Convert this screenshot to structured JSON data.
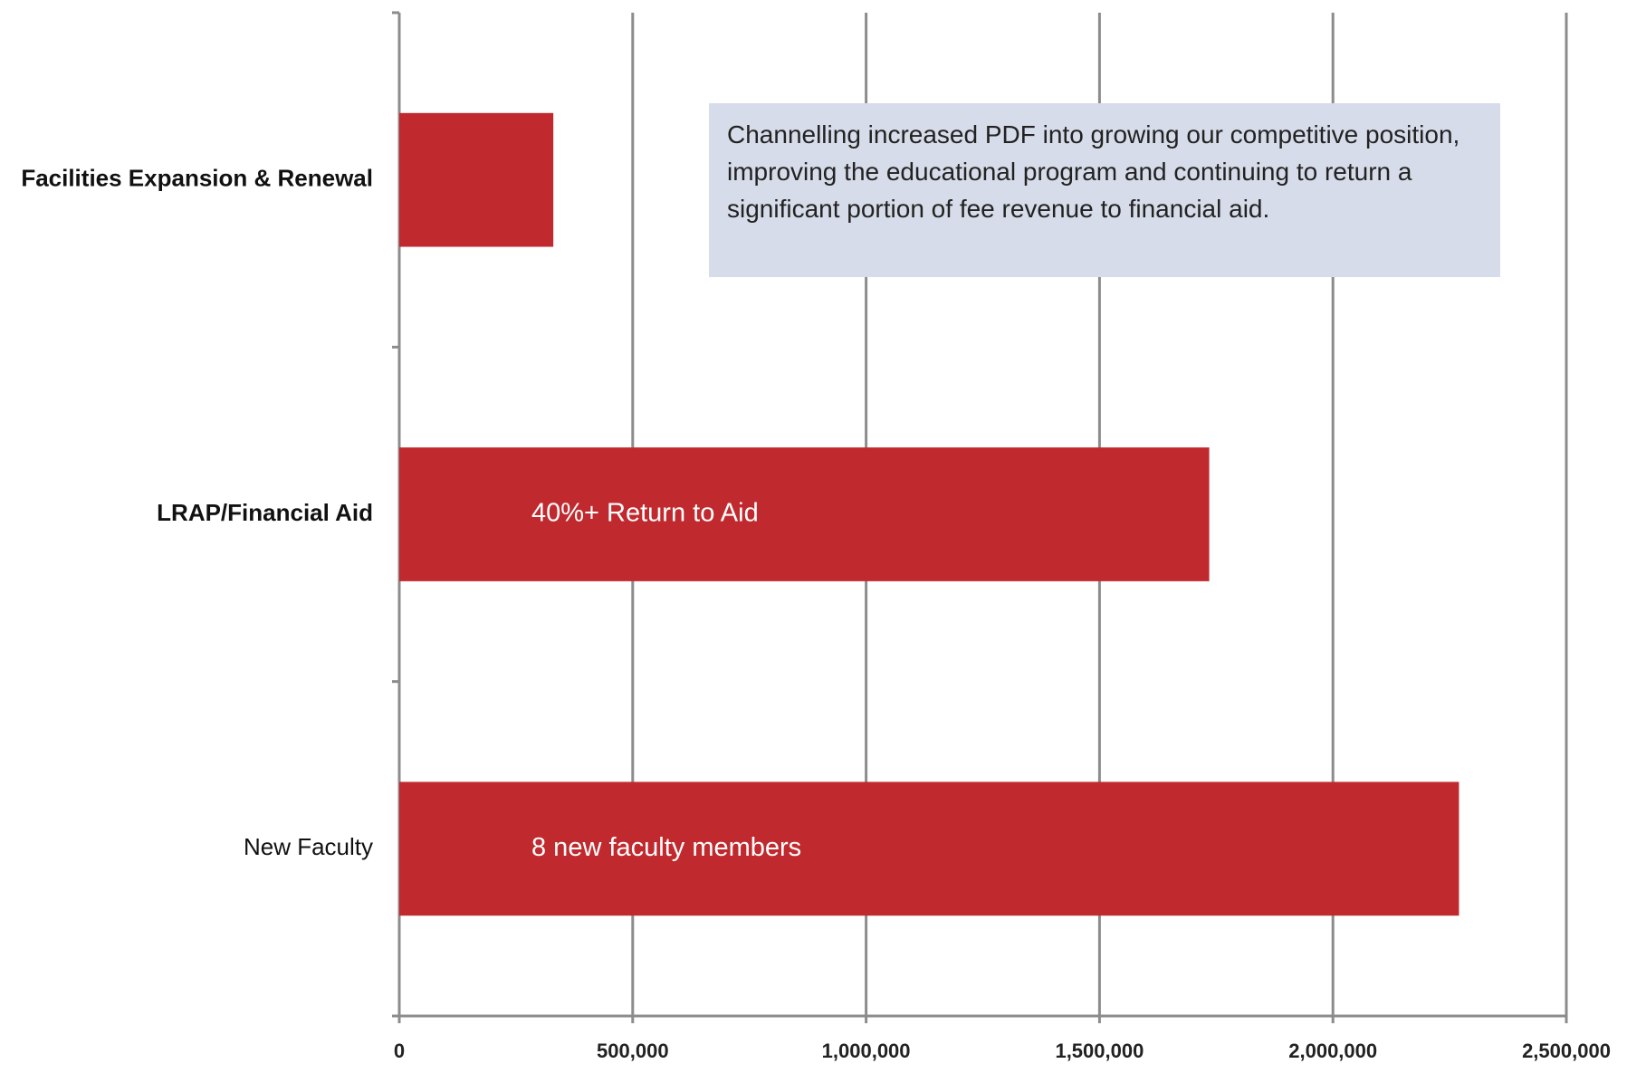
{
  "chart_data": {
    "type": "barh",
    "categories": [
      "Facilities Expansion & Renewal",
      "LRAP/Financial Aid",
      "New Faculty"
    ],
    "values": [
      330000,
      1735000,
      2270000
    ],
    "bar_labels": [
      null,
      "40%+ Return to Aid",
      "8 new faculty members"
    ],
    "color": "#c0292e",
    "xlim": [
      0,
      2500000
    ],
    "xticks": [
      0,
      {
        "value": 500000,
        "label": "500,000"
      },
      {
        "value": 1000000,
        "label": "1,000,000"
      },
      {
        "value": 1500000,
        "label": "1,500,000"
      },
      {
        "value": 2000000,
        "label": "2,000,000"
      },
      {
        "value": 2500000,
        "label": "2,500,000"
      }
    ],
    "grid": true,
    "annotation": "Channelling increased PDF into growing our competitive position, improving the educational program and continuing to return a significant portion of fee revenue to financial aid."
  }
}
